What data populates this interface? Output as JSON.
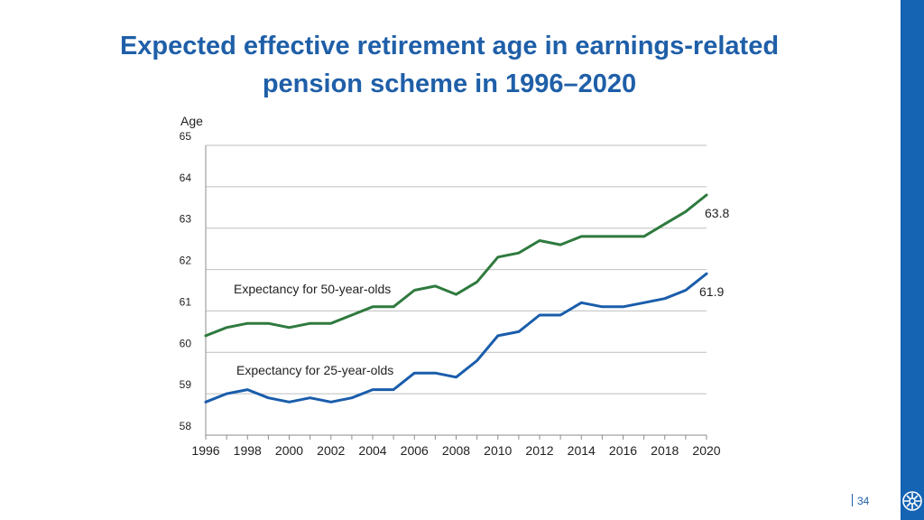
{
  "slide": {
    "title_line1": "Expected effective retirement age in earnings-related",
    "title_line2": "pension scheme in 1996–2020",
    "page_number": "34",
    "accent_color": "#1563b3",
    "logo_icon": "company-logo-icon"
  },
  "chart_data": {
    "type": "line",
    "title": "Expected effective retirement age in earnings-related pension scheme in 1996–2020",
    "ylabel": "Age",
    "xlabel": "",
    "ylim": [
      58,
      65
    ],
    "yticks": [
      58,
      59,
      60,
      61,
      62,
      63,
      64,
      65
    ],
    "xlim": [
      1996,
      2020
    ],
    "xticks": [
      1996,
      1998,
      2000,
      2002,
      2004,
      2006,
      2008,
      2010,
      2012,
      2014,
      2016,
      2018,
      2020
    ],
    "grid": true,
    "x": [
      1996,
      1997,
      1998,
      1999,
      2000,
      2001,
      2002,
      2003,
      2004,
      2005,
      2006,
      2007,
      2008,
      2009,
      2010,
      2011,
      2012,
      2013,
      2014,
      2015,
      2016,
      2017,
      2018,
      2019,
      2020
    ],
    "series": [
      {
        "name": "Expectancy for 50-year-olds",
        "color": "#2e7a3e",
        "values": [
          60.4,
          60.6,
          60.7,
          60.7,
          60.6,
          60.7,
          60.7,
          60.9,
          61.1,
          61.1,
          61.5,
          61.6,
          61.4,
          61.7,
          62.3,
          62.4,
          62.7,
          62.6,
          62.8,
          62.8,
          62.8,
          62.8,
          63.1,
          63.4,
          63.8
        ],
        "end_label": "63.8"
      },
      {
        "name": "Expectancy for 25-year-olds",
        "color": "#1a5dab",
        "values": [
          58.8,
          59.0,
          59.1,
          58.9,
          58.8,
          58.9,
          58.8,
          58.9,
          59.1,
          59.1,
          59.5,
          59.5,
          59.4,
          59.8,
          60.4,
          60.5,
          60.9,
          60.9,
          61.2,
          61.1,
          61.1,
          61.2,
          61.3,
          61.5,
          61.9
        ],
        "end_label": "61.9"
      }
    ]
  }
}
